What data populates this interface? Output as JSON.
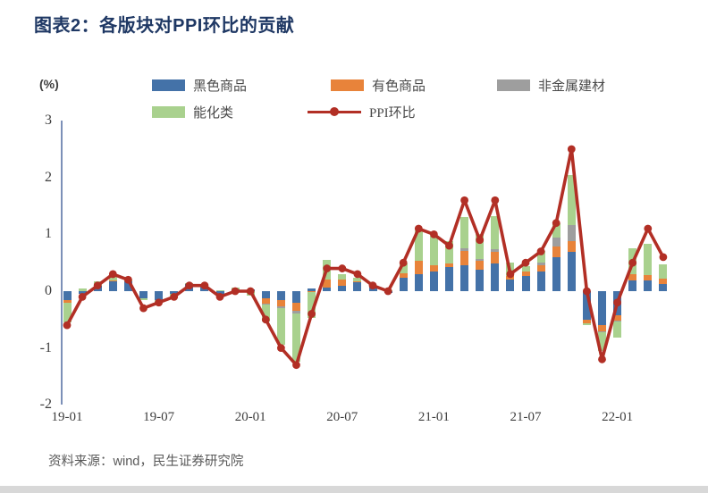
{
  "header": {
    "title": "图表2：各版块对PPI环比的贡献"
  },
  "footer": {
    "source": "资料来源：wind，民生证券研究院"
  },
  "chart_data": {
    "type": "bar",
    "subtype": "stacked-bars-with-line-overlay",
    "unit_label": "(%)",
    "ylim": [
      -2,
      3
    ],
    "y_ticks": [
      3,
      2,
      1,
      0,
      -1,
      -2
    ],
    "x_tick_labels": [
      "19-01",
      "19-07",
      "20-01",
      "20-07",
      "21-01",
      "21-07",
      "22-01"
    ],
    "x_tick_month_interval": 6,
    "grid": "off",
    "legend_position": "top",
    "categories": [
      "19-01",
      "19-02",
      "19-03",
      "19-04",
      "19-05",
      "19-06",
      "19-07",
      "19-08",
      "19-09",
      "19-10",
      "19-11",
      "19-12",
      "20-01",
      "20-02",
      "20-03",
      "20-04",
      "20-05",
      "20-06",
      "20-07",
      "20-08",
      "20-09",
      "20-10",
      "20-11",
      "20-12",
      "21-01",
      "21-02",
      "21-03",
      "21-04",
      "21-05",
      "21-06",
      "21-07",
      "21-08",
      "21-09",
      "21-10",
      "21-11",
      "21-12",
      "22-01",
      "22-02",
      "22-03",
      "22-04"
    ],
    "series": [
      {
        "key": "black-commodities",
        "name": "黑色商品",
        "color": "#4472A8",
        "values": [
          -0.15,
          -0.05,
          0.1,
          0.17,
          0.17,
          -0.12,
          -0.15,
          -0.05,
          0.12,
          0.1,
          -0.1,
          0.03,
          0.03,
          -0.12,
          -0.15,
          -0.2,
          0.05,
          0.06,
          0.1,
          0.15,
          0.08,
          -0.03,
          0.24,
          0.3,
          0.34,
          0.42,
          0.45,
          0.37,
          0.48,
          0.2,
          0.26,
          0.35,
          0.6,
          0.69,
          -0.5,
          -0.6,
          -0.42,
          0.19,
          0.19,
          0.12
        ]
      },
      {
        "key": "nonferrous-commodities",
        "name": "有色商品",
        "color": "#E8833A",
        "values": [
          -0.05,
          0,
          0,
          0.02,
          0,
          0,
          0,
          0,
          0,
          0,
          0,
          0,
          0,
          -0.1,
          -0.12,
          -0.15,
          -0.02,
          0.15,
          0.1,
          0.03,
          0,
          0,
          0.08,
          0.24,
          0.11,
          0.06,
          0.25,
          0.16,
          0.21,
          0.06,
          0.08,
          0.1,
          0.19,
          0.19,
          -0.07,
          -0.1,
          -0.1,
          0.11,
          0.1,
          0.1
        ]
      },
      {
        "key": "nonmetal-building-materials",
        "name": "非金属建材",
        "color": "#9E9E9E",
        "values": [
          0,
          0,
          0,
          0,
          0,
          0,
          0,
          0,
          0,
          0,
          0,
          0,
          0,
          -0.02,
          -0.03,
          -0.05,
          0,
          0,
          0,
          0,
          0,
          0,
          0,
          0,
          0,
          0,
          0.05,
          0.03,
          0.05,
          0,
          0,
          0.05,
          0.16,
          0.29,
          0,
          -0.02,
          -0.02,
          0,
          0,
          0
        ]
      },
      {
        "key": "energy-chemicals",
        "name": "能化类",
        "color": "#A9D18E",
        "values": [
          -0.35,
          0.05,
          0.08,
          0.08,
          0.03,
          -0.03,
          -0.05,
          -0.08,
          0.02,
          0.02,
          0.02,
          0.04,
          -0.08,
          -0.3,
          -0.65,
          -0.85,
          -0.45,
          0.34,
          0.1,
          0.05,
          0.02,
          0.02,
          0.16,
          0.53,
          0.53,
          0.4,
          0.55,
          0.45,
          0.58,
          0.24,
          0.1,
          0.2,
          0.25,
          0.87,
          -0.02,
          -0.33,
          -0.28,
          0.45,
          0.55,
          0.25
        ]
      }
    ],
    "line": {
      "key": "ppi-mom",
      "name": "PPI环比",
      "color": "#B22F25",
      "values": [
        -0.6,
        -0.1,
        0.1,
        0.3,
        0.2,
        -0.3,
        -0.2,
        -0.1,
        0.1,
        0.1,
        -0.1,
        0.0,
        0.0,
        -0.5,
        -1.0,
        -1.3,
        -0.4,
        0.4,
        0.4,
        0.3,
        0.1,
        0.0,
        0.5,
        1.1,
        1.0,
        0.8,
        1.6,
        0.9,
        1.6,
        0.3,
        0.5,
        0.7,
        1.2,
        2.5,
        0.0,
        -1.2,
        -0.2,
        0.5,
        1.1,
        0.6
      ]
    },
    "legend": [
      {
        "label": "黑色商品",
        "color": "#4472A8",
        "marker": "square"
      },
      {
        "label": "有色商品",
        "color": "#E8833A",
        "marker": "square"
      },
      {
        "label": "非金属建材",
        "color": "#9E9E9E",
        "marker": "square"
      },
      {
        "label": "能化类",
        "color": "#A9D18E",
        "marker": "square"
      },
      {
        "label": "PPI环比",
        "color": "#B22F25",
        "marker": "line-dot"
      }
    ],
    "colors": {
      "title": "#1F3864",
      "axis_line": "#7C90B8",
      "tick_text": "#3f3f3f",
      "source_text": "#595959"
    }
  }
}
